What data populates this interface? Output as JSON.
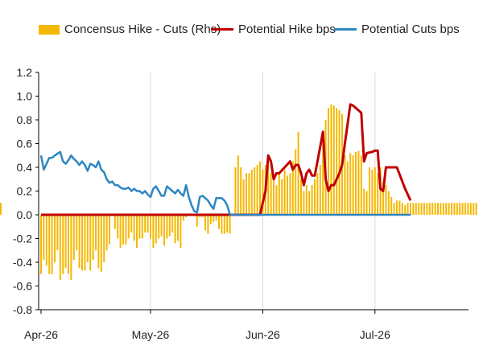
{
  "chart_data": {
    "type": "bar+line",
    "legend": [
      {
        "label": "Concensus Hike - Cuts (Rhs)",
        "color": "#F5B800",
        "kind": "bar"
      },
      {
        "label": "Potential Hike bps",
        "color": "#C00000",
        "kind": "line"
      },
      {
        "label": "Potential Cuts bps",
        "color": "#2E86C1",
        "kind": "line"
      }
    ],
    "legend_position": "top",
    "ylim": [
      -0.8,
      1.2
    ],
    "yticks": [
      "1.2",
      "1.0",
      "0.8",
      "0.6",
      "0.4",
      "0.2",
      "0.0",
      "-0.2",
      "-0.4",
      "-0.6",
      "-0.8"
    ],
    "ytick_values": [
      1.2,
      1.0,
      0.8,
      0.6,
      0.4,
      0.2,
      0.0,
      -0.2,
      -0.4,
      -0.6,
      -0.8
    ],
    "xlim": [
      0,
      123
    ],
    "xticks": [
      {
        "label": "Apr-26",
        "x": 0
      },
      {
        "label": "May-26",
        "x": 40
      },
      {
        "label": "Jun-26",
        "x": 81
      },
      {
        "label": "Jul-26",
        "x": 122
      }
    ],
    "vertical_gridlines": true,
    "bar_x": [
      0,
      1,
      2,
      3,
      4,
      5,
      6,
      7,
      8,
      9,
      10,
      11,
      12,
      13,
      14,
      15,
      16,
      17,
      18,
      19,
      20,
      21,
      22,
      23,
      24,
      25,
      26,
      27,
      28,
      29,
      30,
      31,
      32,
      33,
      34,
      35,
      36,
      37,
      38,
      39,
      40,
      41,
      42,
      43,
      44,
      45,
      46,
      47,
      48,
      49,
      50,
      51,
      52,
      53,
      54,
      55,
      56,
      57,
      58,
      59,
      60,
      61,
      62,
      63,
      64,
      65,
      66,
      67,
      68,
      69,
      70,
      71,
      72,
      73,
      74,
      75,
      76,
      77,
      78,
      79,
      80,
      81,
      82,
      83,
      84,
      85,
      86,
      87,
      88,
      89,
      90,
      91,
      92,
      93,
      94,
      95,
      96,
      97,
      98,
      99,
      100,
      101,
      102,
      103,
      104,
      105,
      106,
      107,
      108,
      109,
      110,
      111,
      112,
      113,
      114,
      115,
      116,
      117,
      118,
      119,
      120,
      121,
      122,
      123,
      124,
      125,
      126,
      127,
      128,
      129,
      130,
      131,
      132,
      133,
      134,
      135,
      136,
      137,
      138,
      139,
      140,
      141,
      142,
      143,
      144,
      145,
      146,
      147,
      148,
      149,
      150,
      151,
      152,
      153,
      154,
      155,
      156,
      157,
      158,
      159
    ],
    "bar_values": [
      -0.5,
      -0.38,
      -0.43,
      -0.5,
      -0.5,
      -0.4,
      -0.3,
      -0.55,
      -0.5,
      -0.45,
      -0.5,
      -0.55,
      -0.38,
      -0.3,
      -0.45,
      -0.47,
      -0.47,
      -0.4,
      -0.47,
      -0.38,
      -0.3,
      -0.45,
      -0.48,
      -0.4,
      -0.3,
      -0.25,
      0,
      -0.12,
      -0.2,
      -0.28,
      -0.25,
      -0.25,
      -0.2,
      -0.15,
      -0.22,
      -0.28,
      -0.2,
      -0.2,
      -0.15,
      -0.15,
      -0.2,
      -0.28,
      -0.24,
      -0.2,
      -0.18,
      -0.26,
      -0.2,
      -0.18,
      -0.15,
      -0.24,
      -0.22,
      -0.28,
      -0.05,
      -0.02,
      0,
      -0.01,
      0,
      -0.1,
      -0.02,
      -0.02,
      -0.13,
      -0.16,
      -0.08,
      -0.06,
      -0.05,
      -0.12,
      -0.16,
      -0.16,
      -0.15,
      -0.16,
      0,
      0.4,
      0.5,
      0.4,
      0.3,
      0.35,
      0.35,
      0.38,
      0.4,
      0.42,
      0.45,
      0.38,
      0.42,
      0.42,
      0.35,
      0.3,
      0.25,
      0.35,
      0.3,
      0.38,
      0.33,
      0.35,
      0.45,
      0.55,
      0.7,
      0.3,
      0.2,
      0.25,
      0.2,
      0.25,
      0.3,
      0.35,
      0.42,
      0.6,
      0.8,
      0.9,
      0.93,
      0.92,
      0.9,
      0.88,
      0.85,
      0.5,
      0.45,
      0.52,
      0.5,
      0.53,
      0.54,
      0.5,
      0.22,
      0.2,
      0.4,
      0.38,
      0.4,
      0.35,
      0.4,
      0.28,
      0.25,
      0.2,
      0.15,
      0.1,
      0.12,
      0.12,
      0.1,
      0.08,
      0.1,
      0.1,
      0.1,
      0.1,
      0.1,
      0.1,
      0.1,
      0.1,
      0.1,
      0.1,
      0.1,
      0.1,
      0.1,
      0.1,
      0.1,
      0.1,
      0.1,
      0.1,
      0.1,
      0.1,
      0.1,
      0.1,
      0.1,
      0.1,
      0.1,
      0.1,
      0.1,
      0.1
    ],
    "series": [
      {
        "name": "Potential Hike bps",
        "color": "#C00000",
        "points": [
          [
            0,
            0
          ],
          [
            80,
            0
          ],
          [
            82,
            0.2
          ],
          [
            83,
            0.5
          ],
          [
            84,
            0.45
          ],
          [
            85,
            0.3
          ],
          [
            86,
            0.35
          ],
          [
            87,
            0.35
          ],
          [
            89,
            0.4
          ],
          [
            91,
            0.45
          ],
          [
            92,
            0.38
          ],
          [
            93,
            0.42
          ],
          [
            94,
            0.42
          ],
          [
            95,
            0.35
          ],
          [
            96,
            0.25
          ],
          [
            97,
            0.35
          ],
          [
            98,
            0.38
          ],
          [
            99,
            0.33
          ],
          [
            100,
            0.33
          ],
          [
            101,
            0.45
          ],
          [
            103,
            0.7
          ],
          [
            104,
            0.3
          ],
          [
            105,
            0.2
          ],
          [
            106,
            0.25
          ],
          [
            107,
            0.25
          ],
          [
            108,
            0.3
          ],
          [
            109,
            0.35
          ],
          [
            110,
            0.42
          ],
          [
            111,
            0.6
          ],
          [
            113,
            0.93
          ],
          [
            114,
            0.92
          ],
          [
            115,
            0.9
          ],
          [
            117,
            0.86
          ],
          [
            118,
            0.45
          ],
          [
            119,
            0.52
          ],
          [
            121,
            0.53
          ],
          [
            122,
            0.54
          ],
          [
            123,
            0.54
          ],
          [
            124,
            0.22
          ],
          [
            125,
            0.2
          ],
          [
            126,
            0.4
          ],
          [
            128,
            0.4
          ],
          [
            130,
            0.4
          ],
          [
            132,
            0.28
          ],
          [
            133,
            0.22
          ],
          [
            135,
            0.12
          ]
        ]
      },
      {
        "name": "Potential Cuts bps",
        "color": "#2E86C1",
        "points": [
          [
            0,
            0.5
          ],
          [
            1,
            0.38
          ],
          [
            2,
            0.43
          ],
          [
            3,
            0.48
          ],
          [
            4,
            0.48
          ],
          [
            5,
            0.5
          ],
          [
            7,
            0.53
          ],
          [
            8,
            0.45
          ],
          [
            9,
            0.43
          ],
          [
            10,
            0.46
          ],
          [
            11,
            0.5
          ],
          [
            12,
            0.47
          ],
          [
            13,
            0.45
          ],
          [
            14,
            0.42
          ],
          [
            15,
            0.45
          ],
          [
            16,
            0.42
          ],
          [
            17,
            0.37
          ],
          [
            18,
            0.43
          ],
          [
            19,
            0.42
          ],
          [
            20,
            0.4
          ],
          [
            21,
            0.45
          ],
          [
            22,
            0.38
          ],
          [
            23,
            0.36
          ],
          [
            24,
            0.3
          ],
          [
            25,
            0.27
          ],
          [
            26,
            0.28
          ],
          [
            27,
            0.25
          ],
          [
            28,
            0.25
          ],
          [
            29,
            0.23
          ],
          [
            30,
            0.22
          ],
          [
            31,
            0.22
          ],
          [
            32,
            0.23
          ],
          [
            33,
            0.2
          ],
          [
            34,
            0.22
          ],
          [
            35,
            0.2
          ],
          [
            36,
            0.2
          ],
          [
            37,
            0.18
          ],
          [
            38,
            0.2
          ],
          [
            39,
            0.17
          ],
          [
            40,
            0.15
          ],
          [
            41,
            0.22
          ],
          [
            42,
            0.24
          ],
          [
            43,
            0.2
          ],
          [
            44,
            0.16
          ],
          [
            45,
            0.16
          ],
          [
            46,
            0.24
          ],
          [
            47,
            0.22
          ],
          [
            48,
            0.2
          ],
          [
            49,
            0.18
          ],
          [
            50,
            0.21
          ],
          [
            51,
            0.18
          ],
          [
            52,
            0.16
          ],
          [
            53,
            0.25
          ],
          [
            54,
            0.15
          ],
          [
            55,
            0.08
          ],
          [
            56,
            0.03
          ],
          [
            57,
            0.02
          ],
          [
            58,
            0.15
          ],
          [
            59,
            0.16
          ],
          [
            60,
            0.14
          ],
          [
            61,
            0.12
          ],
          [
            62,
            0.08
          ],
          [
            63,
            0.05
          ],
          [
            64,
            0.14
          ],
          [
            65,
            0.14
          ],
          [
            66,
            0.14
          ],
          [
            67,
            0.12
          ],
          [
            68,
            0.08
          ],
          [
            69,
            0
          ],
          [
            71,
            0
          ],
          [
            135,
            0
          ]
        ]
      }
    ]
  }
}
